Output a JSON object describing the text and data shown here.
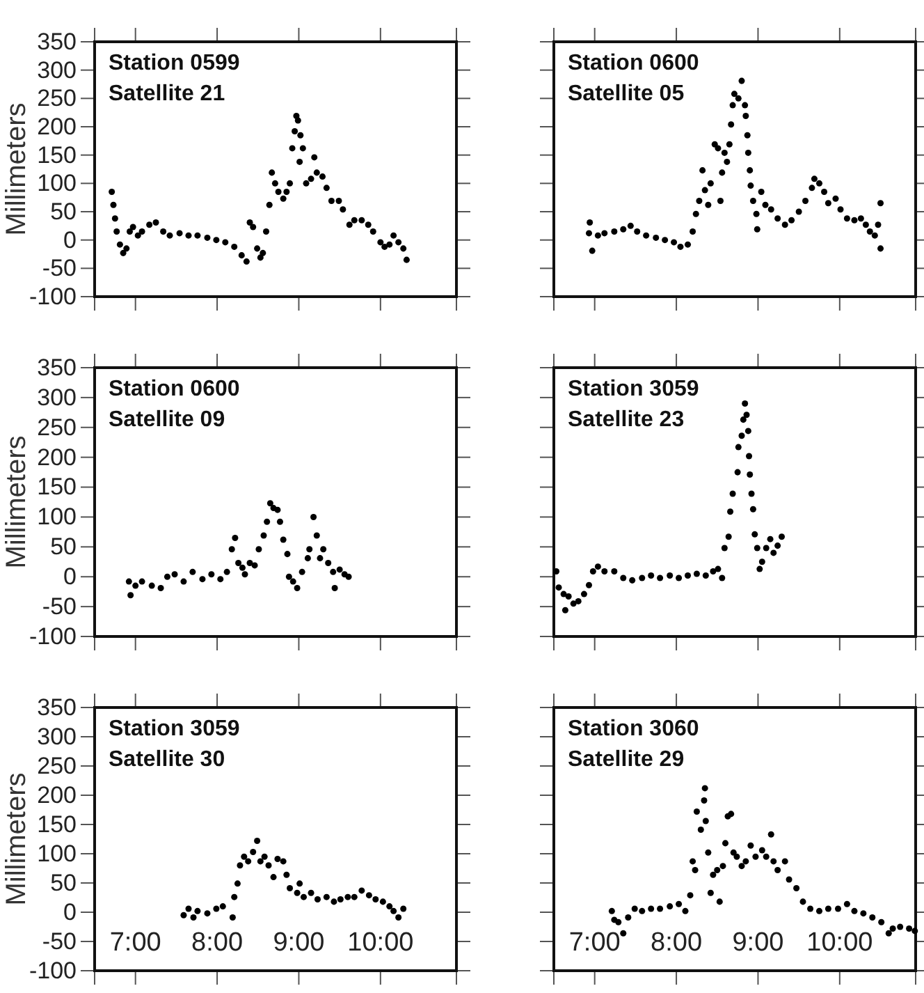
{
  "chart_data": [
    {
      "type": "scatter",
      "title": "Station 0599",
      "subtitle": "Satellite 21",
      "ylabel": "Millimeters",
      "xlim": [
        6.5,
        10.93
      ],
      "ylim": [
        -100,
        350
      ],
      "xticks": [
        {
          "value": 7,
          "label": null
        },
        {
          "value": 8,
          "label": null
        },
        {
          "value": 9,
          "label": null
        },
        {
          "value": 10,
          "label": null
        }
      ],
      "yticks": [
        -100,
        -50,
        0,
        50,
        100,
        150,
        200,
        250,
        300,
        350
      ],
      "tick_labels": "y",
      "marker": "circle",
      "series": [
        {
          "color": "#000000",
          "x": [
            6.71,
            6.73,
            6.75,
            6.77,
            6.81,
            6.85,
            6.89,
            6.93,
            6.97,
            7.03,
            7.08,
            7.17,
            7.25,
            7.34,
            7.42,
            7.54,
            7.65,
            7.76,
            7.88,
            7.99,
            8.1,
            8.21,
            8.3,
            8.36,
            8.4,
            8.44,
            8.49,
            8.53,
            8.56,
            8.6,
            8.64,
            8.67,
            8.71,
            8.75,
            8.81,
            8.85,
            8.89,
            8.92,
            8.95,
            8.97,
            8.99,
            9.02,
            9.01,
            9.05,
            9.09,
            9.15,
            9.19,
            9.22,
            9.29,
            9.34,
            9.4,
            9.49,
            9.54,
            9.62,
            9.68,
            9.77,
            9.85,
            9.91,
            10.0,
            10.05,
            10.11,
            10.16,
            10.22,
            10.28,
            10.32
          ],
          "values": [
            85,
            62,
            38,
            15,
            -8,
            -23,
            -15,
            15,
            23,
            8,
            15,
            27,
            31,
            15,
            8,
            12,
            8,
            8,
            4,
            0,
            -4,
            -12,
            -27,
            -38,
            31,
            23,
            -15,
            -31,
            -23,
            15,
            62,
            119,
            100,
            85,
            73,
            85,
            100,
            162,
            192,
            219,
            211,
            185,
            138,
            162,
            100,
            108,
            146,
            119,
            112,
            92,
            69,
            69,
            54,
            27,
            35,
            35,
            27,
            15,
            -4,
            -12,
            -8,
            8,
            -4,
            -15,
            -35
          ]
        }
      ]
    },
    {
      "type": "scatter",
      "title": "Station 0600",
      "subtitle": "Satellite 05",
      "xlim": [
        6.5,
        10.93
      ],
      "ylim": [
        -100,
        350
      ],
      "xticks": [
        {
          "value": 7,
          "label": null
        },
        {
          "value": 8,
          "label": null
        },
        {
          "value": 9,
          "label": null
        },
        {
          "value": 10,
          "label": null
        }
      ],
      "yticks": [
        -100,
        -50,
        0,
        50,
        100,
        150,
        200,
        250,
        300,
        350
      ],
      "tick_labels": false,
      "marker": "circle",
      "series": [
        {
          "color": "#000000",
          "x": [
            6.94,
            6.93,
            6.97,
            7.04,
            7.12,
            7.24,
            7.35,
            7.44,
            7.52,
            7.63,
            7.75,
            7.86,
            7.97,
            8.05,
            8.14,
            8.2,
            8.24,
            8.28,
            8.32,
            8.35,
            8.39,
            8.42,
            8.47,
            8.51,
            8.54,
            8.56,
            8.59,
            8.62,
            8.65,
            8.67,
            8.69,
            8.71,
            8.76,
            8.8,
            8.84,
            8.85,
            8.87,
            8.88,
            8.9,
            8.91,
            8.94,
            8.98,
            8.99,
            9.04,
            9.09,
            9.16,
            9.24,
            9.33,
            9.41,
            9.5,
            9.58,
            9.66,
            9.69,
            9.75,
            9.81,
            9.86,
            9.95,
            10.01,
            10.09,
            10.18,
            10.26,
            10.32,
            10.37,
            10.43,
            10.47,
            10.5,
            10.5
          ],
          "values": [
            31,
            12,
            -19,
            8,
            12,
            15,
            19,
            25,
            15,
            8,
            4,
            0,
            -4,
            -12,
            -8,
            15,
            46,
            69,
            123,
            88,
            62,
            100,
            169,
            162,
            69,
            119,
            154,
            138,
            169,
            204,
            238,
            258,
            250,
            281,
            238,
            219,
            185,
            154,
            123,
            96,
            69,
            46,
            19,
            85,
            62,
            54,
            38,
            27,
            35,
            50,
            69,
            92,
            108,
            100,
            85,
            65,
            73,
            54,
            38,
            35,
            38,
            27,
            15,
            8,
            27,
            65,
            -15
          ]
        }
      ]
    },
    {
      "type": "scatter",
      "title": "Station 0600",
      "subtitle": "Satellite 09",
      "ylabel": "Millimeters",
      "xlim": [
        6.5,
        10.93
      ],
      "ylim": [
        -100,
        350
      ],
      "xticks": [
        {
          "value": 7,
          "label": null
        },
        {
          "value": 8,
          "label": null
        },
        {
          "value": 9,
          "label": null
        },
        {
          "value": 10,
          "label": null
        }
      ],
      "yticks": [
        -100,
        -50,
        0,
        50,
        100,
        150,
        200,
        250,
        300,
        350
      ],
      "tick_labels": "y",
      "marker": "circle",
      "series": [
        {
          "color": "#000000",
          "x": [
            6.92,
            6.94,
            7.0,
            7.08,
            7.2,
            7.31,
            7.39,
            7.48,
            7.59,
            7.7,
            7.82,
            7.93,
            8.04,
            8.12,
            8.18,
            8.22,
            8.26,
            8.31,
            8.34,
            8.4,
            8.46,
            8.51,
            8.57,
            8.61,
            8.65,
            8.69,
            8.74,
            8.77,
            8.81,
            8.86,
            8.88,
            8.93,
            8.98,
            9.04,
            9.11,
            9.13,
            9.18,
            9.22,
            9.26,
            9.3,
            9.36,
            9.42,
            9.44,
            9.5,
            9.56,
            9.61
          ],
          "values": [
            -8,
            -31,
            -15,
            -8,
            -15,
            -19,
            0,
            4,
            -8,
            8,
            -4,
            4,
            -4,
            8,
            46,
            65,
            23,
            15,
            4,
            23,
            19,
            46,
            69,
            92,
            123,
            115,
            112,
            92,
            62,
            38,
            0,
            -8,
            -19,
            8,
            31,
            46,
            100,
            69,
            31,
            46,
            23,
            8,
            -19,
            12,
            4,
            0
          ]
        }
      ]
    },
    {
      "type": "scatter",
      "title": "Station 3059",
      "subtitle": "Satellite 23",
      "xlim": [
        6.5,
        10.93
      ],
      "ylim": [
        -100,
        350
      ],
      "xticks": [
        {
          "value": 7,
          "label": null
        },
        {
          "value": 8,
          "label": null
        },
        {
          "value": 9,
          "label": null
        },
        {
          "value": 10,
          "label": null
        }
      ],
      "yticks": [
        -100,
        -50,
        0,
        50,
        100,
        150,
        200,
        250,
        300,
        350
      ],
      "tick_labels": false,
      "marker": "circle",
      "series": [
        {
          "color": "#000000",
          "x": [
            6.53,
            6.56,
            6.62,
            6.64,
            6.68,
            6.74,
            6.8,
            6.87,
            6.93,
            6.98,
            7.04,
            7.12,
            7.24,
            7.35,
            7.46,
            7.58,
            7.69,
            7.8,
            7.92,
            8.03,
            8.14,
            8.25,
            8.36,
            8.45,
            8.51,
            8.56,
            8.59,
            8.64,
            8.66,
            8.69,
            8.75,
            8.76,
            8.8,
            8.82,
            8.84,
            8.86,
            8.88,
            8.89,
            8.9,
            8.92,
            8.94,
            8.96,
            8.99,
            9.02,
            9.05,
            9.1,
            9.15,
            9.19,
            9.24,
            9.29
          ],
          "values": [
            9,
            -18,
            -29,
            -56,
            -33,
            -45,
            -41,
            -29,
            -14,
            9,
            17,
            9,
            9,
            -2,
            -6,
            -2,
            2,
            -2,
            2,
            -2,
            2,
            5,
            2,
            9,
            13,
            -2,
            48,
            67,
            109,
            139,
            175,
            217,
            236,
            263,
            290,
            271,
            244,
            202,
            171,
            139,
            113,
            71,
            48,
            13,
            25,
            48,
            63,
            40,
            52,
            67
          ]
        }
      ]
    },
    {
      "type": "scatter",
      "title": "Station 3059",
      "subtitle": "Satellite 30",
      "ylabel": "Millimeters",
      "xlim": [
        6.5,
        10.93
      ],
      "ylim": [
        -100,
        350
      ],
      "xticks": [
        {
          "value": 7,
          "label": "7:00"
        },
        {
          "value": 8,
          "label": "8:00"
        },
        {
          "value": 9,
          "label": "9:00"
        },
        {
          "value": 10,
          "label": "10:00"
        }
      ],
      "yticks": [
        -100,
        -50,
        0,
        50,
        100,
        150,
        200,
        250,
        300,
        350
      ],
      "marker": "circle",
      "series": [
        {
          "color": "#000000",
          "x": [
            7.59,
            7.65,
            7.71,
            7.76,
            7.88,
            7.99,
            8.07,
            8.19,
            8.21,
            8.25,
            8.28,
            8.33,
            8.38,
            8.44,
            8.49,
            8.53,
            8.58,
            8.63,
            8.69,
            8.74,
            8.81,
            8.85,
            8.89,
            8.98,
            9.01,
            9.06,
            9.15,
            9.23,
            9.34,
            9.43,
            9.51,
            9.6,
            9.68,
            9.77,
            9.86,
            9.94,
            10.03,
            10.11,
            10.16,
            10.22,
            10.28
          ],
          "values": [
            -5,
            6,
            -9,
            2,
            -2,
            6,
            10,
            -9,
            26,
            49,
            80,
            95,
            87,
            103,
            122,
            87,
            95,
            80,
            60,
            91,
            87,
            64,
            41,
            33,
            49,
            26,
            33,
            22,
            26,
            18,
            22,
            26,
            26,
            37,
            29,
            22,
            18,
            10,
            2,
            -9,
            6
          ]
        }
      ]
    },
    {
      "type": "scatter",
      "title": "Station 3060",
      "subtitle": "Satellite 29",
      "xlim": [
        6.5,
        10.93
      ],
      "ylim": [
        -100,
        350
      ],
      "xticks": [
        {
          "value": 7,
          "label": "7:00"
        },
        {
          "value": 8,
          "label": "8:00"
        },
        {
          "value": 9,
          "label": "9:00"
        },
        {
          "value": 10,
          "label": "10:00"
        }
      ],
      "yticks": [
        -100,
        -50,
        0,
        50,
        100,
        150,
        200,
        250,
        300,
        350
      ],
      "tick_labels": "x",
      "marker": "circle",
      "series": [
        {
          "color": "#000000",
          "x": [
            7.21,
            7.24,
            7.29,
            7.35,
            7.41,
            7.49,
            7.58,
            7.69,
            7.8,
            7.92,
            8.03,
            8.11,
            8.17,
            8.2,
            8.23,
            8.25,
            8.3,
            8.34,
            8.35,
            8.36,
            8.39,
            8.42,
            8.45,
            8.5,
            8.53,
            8.57,
            8.6,
            8.63,
            8.67,
            8.7,
            8.74,
            8.8,
            8.85,
            8.91,
            8.97,
            9.05,
            9.1,
            9.16,
            9.19,
            9.24,
            9.33,
            9.38,
            9.47,
            9.55,
            9.64,
            9.75,
            9.86,
            9.98,
            10.09,
            10.18,
            10.29,
            10.4,
            10.51,
            10.6,
            10.65,
            10.74,
            10.85,
            10.92
          ],
          "values": [
            2,
            -13,
            -17,
            -36,
            -9,
            6,
            2,
            6,
            6,
            10,
            14,
            2,
            29,
            87,
            72,
            172,
            141,
            191,
            212,
            156,
            102,
            33,
            64,
            72,
            18,
            79,
            118,
            164,
            168,
            102,
            95,
            79,
            87,
            114,
            95,
            106,
            95,
            133,
            87,
            72,
            87,
            56,
            41,
            18,
            6,
            2,
            6,
            6,
            14,
            2,
            -2,
            -9,
            -17,
            -36,
            -28,
            -25,
            -28,
            -32
          ]
        }
      ]
    }
  ]
}
